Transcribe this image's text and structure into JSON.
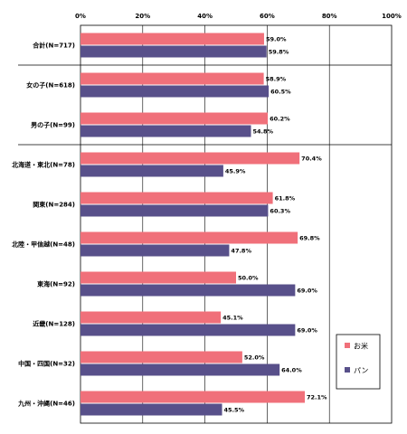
{
  "chart_data": {
    "type": "bar",
    "orientation": "horizontal",
    "title": "",
    "xlabel": "",
    "ylabel": "",
    "xlim": [
      0,
      100
    ],
    "tick_labels": [
      "0%",
      "20%",
      "40%",
      "60%",
      "80%",
      "100%"
    ],
    "grid": true,
    "legend_position": "bottom-right",
    "categories": [
      "合計(N=717)",
      "女の子(N=618)",
      "男の子(N=99)",
      "北海道・東北(N=78)",
      "関東(N=284)",
      "北陸・甲信越(N=48)",
      "東海(N=92)",
      "近畿(N=128)",
      "中国・四国(N=32)",
      "九州・沖縄(N=46)"
    ],
    "series": [
      {
        "name": "お米",
        "color": "#f0707a",
        "values": [
          59.0,
          58.9,
          60.2,
          70.4,
          61.8,
          69.8,
          50.0,
          45.1,
          52.0,
          72.1
        ],
        "labels": [
          "59.0%",
          "58.9%",
          "60.2%",
          "70.4%",
          "61.8%",
          "69.8%",
          "50.0%",
          "45.1%",
          "52.0%",
          "72.1%"
        ]
      },
      {
        "name": "パン",
        "color": "#58508a",
        "values": [
          59.8,
          60.5,
          54.8,
          45.9,
          60.3,
          47.8,
          69.0,
          69.0,
          64.0,
          45.5
        ],
        "labels": [
          "59.8%",
          "60.5%",
          "54.8%",
          "45.9%",
          "60.3%",
          "47.8%",
          "69.0%",
          "69.0%",
          "64.0%",
          "45.5%"
        ]
      }
    ]
  }
}
